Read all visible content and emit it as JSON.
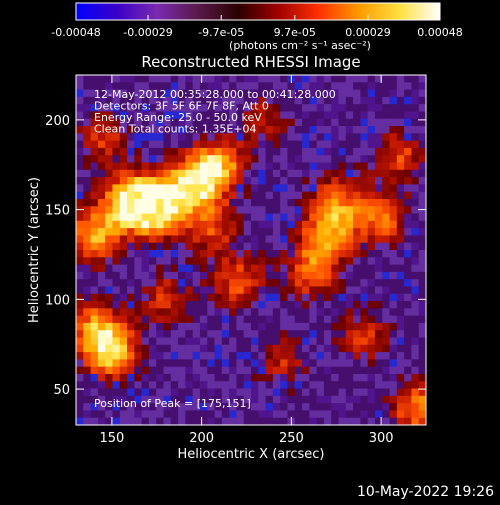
{
  "colorbar": {
    "tick_labels": [
      "-0.00048",
      "-0.00029",
      "-9.7e-05",
      "9.7e-05",
      "0.00029",
      "0.00048"
    ],
    "tick_values": [
      -0.00048,
      -0.00029,
      -9.7e-05,
      9.7e-05,
      0.00029,
      0.00048
    ],
    "range": [
      -0.00048,
      0.00048
    ],
    "unit_label": "(photons cm⁻² s⁻¹ asec⁻²)",
    "colormap": [
      "#0000ff",
      "#3a00c8",
      "#7a2ab0",
      "#5a1a4a",
      "#2a0000",
      "#a00000",
      "#ff3000",
      "#ff9a00",
      "#ffe040",
      "#ffffff"
    ]
  },
  "chart_data": {
    "type": "heatmap",
    "title": "Reconstructed RHESSI Image",
    "xlabel": "Heliocentric X (arcsec)",
    "ylabel": "Heliocentric Y (arcsec)",
    "xlim": [
      130,
      325
    ],
    "ylim": [
      30,
      225
    ],
    "xticks": [
      150,
      200,
      250,
      300
    ],
    "yticks": [
      50,
      100,
      150,
      200
    ],
    "annotations": [
      "12-May-2012 00:35:28.000 to 00:41:28.000",
      "Detectors: 3F 5F 6F 7F 8F, Att 0",
      "Energy Range: 25.0 - 50.0 keV",
      "Clean     Total counts: 1.35E+04"
    ],
    "peak_label": "Position of Peak = [175,151]",
    "peak": [
      175,
      151
    ],
    "grid": false,
    "bright_regions": [
      {
        "x": 175,
        "y": 151,
        "level": 1.0
      },
      {
        "x": 160,
        "y": 155,
        "level": 0.9
      },
      {
        "x": 195,
        "y": 165,
        "level": 0.8
      },
      {
        "x": 210,
        "y": 175,
        "level": 0.7
      },
      {
        "x": 140,
        "y": 135,
        "level": 0.75
      },
      {
        "x": 150,
        "y": 70,
        "level": 0.8
      },
      {
        "x": 140,
        "y": 85,
        "level": 0.6
      },
      {
        "x": 220,
        "y": 110,
        "level": 0.55
      },
      {
        "x": 270,
        "y": 135,
        "level": 0.65
      },
      {
        "x": 275,
        "y": 155,
        "level": 0.55
      },
      {
        "x": 260,
        "y": 115,
        "level": 0.55
      },
      {
        "x": 300,
        "y": 145,
        "level": 0.6
      },
      {
        "x": 310,
        "y": 180,
        "level": 0.5
      },
      {
        "x": 320,
        "y": 40,
        "level": 0.65
      },
      {
        "x": 290,
        "y": 80,
        "level": 0.45
      },
      {
        "x": 145,
        "y": 190,
        "level": 0.45
      },
      {
        "x": 205,
        "y": 140,
        "level": 0.5
      },
      {
        "x": 180,
        "y": 100,
        "level": 0.45
      },
      {
        "x": 245,
        "y": 65,
        "level": 0.4
      },
      {
        "x": 235,
        "y": 200,
        "level": 0.35
      }
    ]
  },
  "footer": {
    "date": "10-May-2022 19:26"
  }
}
